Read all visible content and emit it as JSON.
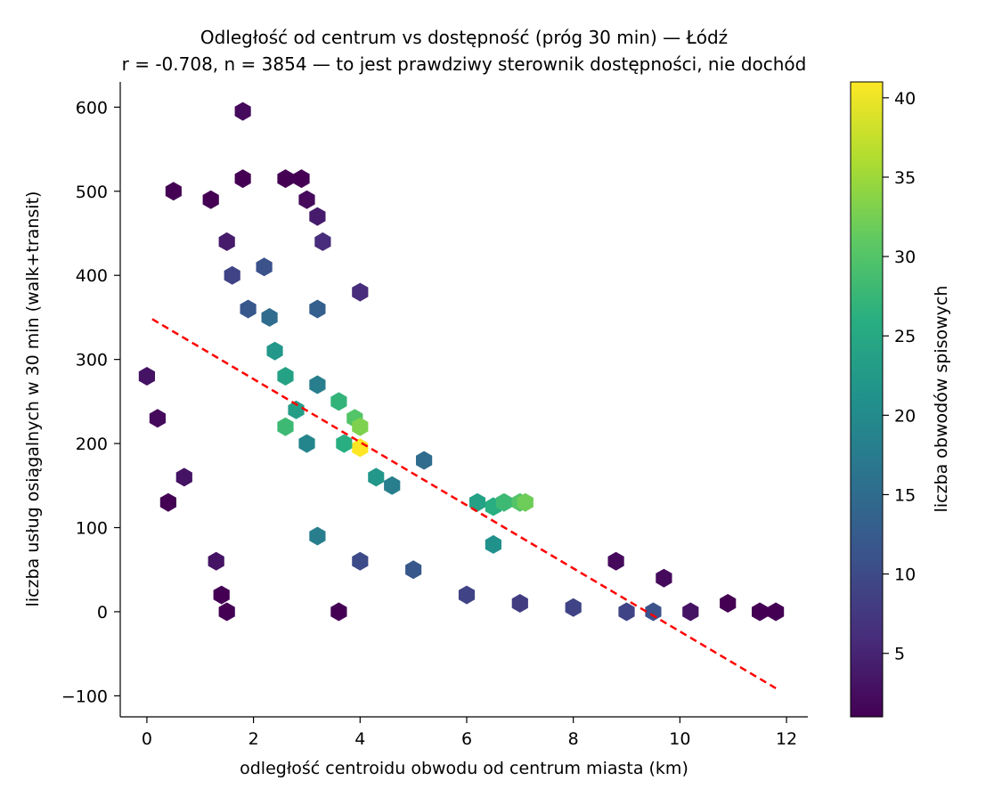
{
  "chart_data": {
    "type": "hexbin",
    "title": "Odległość od centrum vs dostępność (próg 30 min) — Łódź",
    "subtitle": "r = -0.708, n = 3854 — to jest prawdziwy sterownik dostępności, nie dochód",
    "xlabel": "odległość centroidu obwodu od centrum miasta (km)",
    "ylabel": "liczba usług osiągalnych w 30 min (walk+transit)",
    "xlim": [
      -0.5,
      12.4
    ],
    "ylim": [
      -125,
      630
    ],
    "xticks": [
      0,
      2,
      4,
      6,
      8,
      10,
      12
    ],
    "yticks": [
      -100,
      0,
      100,
      200,
      300,
      400,
      500,
      600
    ],
    "xticklabels": [
      "0",
      "2",
      "4",
      "6",
      "8",
      "10",
      "12"
    ],
    "yticklabels": [
      "−100",
      "0",
      "100",
      "200",
      "300",
      "400",
      "500",
      "600"
    ],
    "grid": false,
    "colorbar": {
      "label": "liczba obwodów spisowych",
      "colormap": "viridis",
      "range": [
        1,
        41
      ],
      "ticks": [
        5,
        10,
        15,
        20,
        25,
        30,
        35,
        40
      ],
      "ticklabels": [
        "5",
        "10",
        "15",
        "20",
        "25",
        "30",
        "35",
        "40"
      ]
    },
    "trendline": {
      "x": [
        0.1,
        11.8
      ],
      "y": [
        348,
        -91
      ],
      "color": "#ff0000",
      "style": "dashed"
    },
    "r": -0.708,
    "n": 3854,
    "bins": [
      {
        "x": 1.8,
        "y": 595,
        "count": 2
      },
      {
        "x": 1.8,
        "y": 515,
        "count": 1
      },
      {
        "x": 2.6,
        "y": 515,
        "count": 1
      },
      {
        "x": 2.9,
        "y": 515,
        "count": 1
      },
      {
        "x": 0.5,
        "y": 500,
        "count": 1
      },
      {
        "x": 1.2,
        "y": 490,
        "count": 1
      },
      {
        "x": 3.0,
        "y": 490,
        "count": 2
      },
      {
        "x": 3.2,
        "y": 470,
        "count": 4
      },
      {
        "x": 3.3,
        "y": 440,
        "count": 6
      },
      {
        "x": 1.5,
        "y": 440,
        "count": 4
      },
      {
        "x": 1.6,
        "y": 400,
        "count": 9
      },
      {
        "x": 2.2,
        "y": 410,
        "count": 11
      },
      {
        "x": 1.9,
        "y": 360,
        "count": 12
      },
      {
        "x": 2.3,
        "y": 350,
        "count": 15
      },
      {
        "x": 3.2,
        "y": 360,
        "count": 13
      },
      {
        "x": 4.0,
        "y": 380,
        "count": 6
      },
      {
        "x": 2.4,
        "y": 310,
        "count": 22
      },
      {
        "x": 2.6,
        "y": 280,
        "count": 24
      },
      {
        "x": 2.8,
        "y": 240,
        "count": 23
      },
      {
        "x": 2.6,
        "y": 220,
        "count": 28
      },
      {
        "x": 3.2,
        "y": 270,
        "count": 18
      },
      {
        "x": 3.6,
        "y": 250,
        "count": 27
      },
      {
        "x": 3.9,
        "y": 230,
        "count": 30
      },
      {
        "x": 4.0,
        "y": 220,
        "count": 33
      },
      {
        "x": 4.0,
        "y": 195,
        "count": 41
      },
      {
        "x": 3.7,
        "y": 200,
        "count": 26
      },
      {
        "x": 3.0,
        "y": 200,
        "count": 19
      },
      {
        "x": 4.3,
        "y": 160,
        "count": 22
      },
      {
        "x": 4.6,
        "y": 150,
        "count": 18
      },
      {
        "x": 5.2,
        "y": 180,
        "count": 15
      },
      {
        "x": 6.2,
        "y": 130,
        "count": 24
      },
      {
        "x": 6.5,
        "y": 125,
        "count": 26
      },
      {
        "x": 6.7,
        "y": 130,
        "count": 28
      },
      {
        "x": 7.0,
        "y": 130,
        "count": 30
      },
      {
        "x": 7.1,
        "y": 130,
        "count": 32
      },
      {
        "x": 6.5,
        "y": 80,
        "count": 21
      },
      {
        "x": 3.2,
        "y": 90,
        "count": 18
      },
      {
        "x": 4.0,
        "y": 60,
        "count": 10
      },
      {
        "x": 5.0,
        "y": 50,
        "count": 12
      },
      {
        "x": 6.0,
        "y": 20,
        "count": 9
      },
      {
        "x": 7.0,
        "y": 10,
        "count": 8
      },
      {
        "x": 8.0,
        "y": 5,
        "count": 9
      },
      {
        "x": 9.0,
        "y": 0,
        "count": 9
      },
      {
        "x": 9.5,
        "y": 0,
        "count": 11
      },
      {
        "x": 10.2,
        "y": 0,
        "count": 3
      },
      {
        "x": 10.9,
        "y": 10,
        "count": 1
      },
      {
        "x": 11.5,
        "y": 0,
        "count": 1
      },
      {
        "x": 11.8,
        "y": 0,
        "count": 1
      },
      {
        "x": 1.5,
        "y": 0,
        "count": 1
      },
      {
        "x": 3.6,
        "y": 0,
        "count": 1
      },
      {
        "x": 0.0,
        "y": 280,
        "count": 3
      },
      {
        "x": 0.2,
        "y": 230,
        "count": 2
      },
      {
        "x": 0.4,
        "y": 130,
        "count": 1
      },
      {
        "x": 0.7,
        "y": 160,
        "count": 3
      },
      {
        "x": 1.3,
        "y": 60,
        "count": 3
      },
      {
        "x": 1.4,
        "y": 20,
        "count": 1
      },
      {
        "x": 8.8,
        "y": 60,
        "count": 2
      },
      {
        "x": 9.7,
        "y": 40,
        "count": 2
      }
    ]
  }
}
